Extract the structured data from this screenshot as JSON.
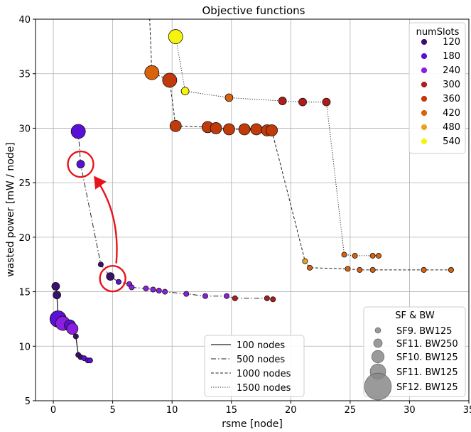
{
  "chart_data": {
    "type": "scatter",
    "title": "Objective functions",
    "xlabel": "rsme [node]",
    "ylabel": "wasted power [mW / node]",
    "xlim": [
      -1.5,
      35
    ],
    "ylim": [
      5,
      40
    ],
    "xticks": [
      0,
      5,
      10,
      15,
      20,
      25,
      30,
      35
    ],
    "yticks": [
      5,
      10,
      15,
      20,
      25,
      30,
      35,
      40
    ],
    "grid": true,
    "color_legend": {
      "title": "numSlots",
      "placement": "top-right",
      "entries": [
        {
          "label": "120",
          "color": "#3b0f70"
        },
        {
          "label": "180",
          "color": "#5a10d8"
        },
        {
          "label": "240",
          "color": "#8c1ee0"
        },
        {
          "label": "300",
          "color": "#b01c1c"
        },
        {
          "label": "360",
          "color": "#c03a0a"
        },
        {
          "label": "420",
          "color": "#d9620d"
        },
        {
          "label": "480",
          "color": "#eca21a"
        },
        {
          "label": "540",
          "color": "#f6f40c"
        }
      ]
    },
    "size_legend": {
      "title": "SF & BW",
      "placement": "bottom-right",
      "entries": [
        {
          "label": "SF9. BW125",
          "size": 1
        },
        {
          "label": "SF11. BW250",
          "size": 2
        },
        {
          "label": "SF10. BW125",
          "size": 3
        },
        {
          "label": "SF11. BW125",
          "size": 4
        },
        {
          "label": "SF12. BW125",
          "size": 5
        }
      ]
    },
    "line_legend": {
      "placement": "bottom-center",
      "entries": [
        {
          "label": "100 nodes",
          "style": "solid"
        },
        {
          "label": "500 nodes",
          "style": "dashdot"
        },
        {
          "label": "1000 nodes",
          "style": "dashed"
        },
        {
          "label": "1500 nodes",
          "style": "dotted"
        }
      ]
    },
    "series": [
      {
        "style": "solid",
        "points": [
          {
            "x": 0.2,
            "y": 15.5,
            "c": "#3b0f70",
            "s": 2
          },
          {
            "x": 0.3,
            "y": 14.7,
            "c": "#3b0f70",
            "s": 2
          },
          {
            "x": 0.4,
            "y": 12.5,
            "c": "#5a10d8",
            "s": 5
          },
          {
            "x": 0.8,
            "y": 12.1,
            "c": "#8c1ee0",
            "s": 4
          },
          {
            "x": 1.4,
            "y": 11.9,
            "c": "#5a10d8",
            "s": 3
          },
          {
            "x": 1.6,
            "y": 11.6,
            "c": "#8c1ee0",
            "s": 3
          },
          {
            "x": 1.9,
            "y": 10.9,
            "c": "#3b0f70",
            "s": 1
          },
          {
            "x": 2.1,
            "y": 9.2,
            "c": "#3b0f70",
            "s": 1
          },
          {
            "x": 2.3,
            "y": 9.0,
            "c": "#3b0f70",
            "s": 1
          },
          {
            "x": 2.6,
            "y": 8.9,
            "c": "#5a10d8",
            "s": 1
          },
          {
            "x": 2.9,
            "y": 8.7,
            "c": "#5a10d8",
            "s": 1
          },
          {
            "x": 3.1,
            "y": 8.7,
            "c": "#5a10d8",
            "s": 1
          }
        ]
      },
      {
        "style": "dashdot",
        "points": [
          {
            "x": 2.1,
            "y": 29.7,
            "c": "#5a10d8",
            "s": 4
          },
          {
            "x": 2.3,
            "y": 26.7,
            "c": "#5a10d8",
            "s": 2
          },
          {
            "x": 4.0,
            "y": 17.5,
            "c": "#3b0f70",
            "s": 1
          },
          {
            "x": 4.8,
            "y": 16.4,
            "c": "#3b0f70",
            "s": 2
          },
          {
            "x": 5.5,
            "y": 15.9,
            "c": "#5a10d8",
            "s": 1
          },
          {
            "x": 6.4,
            "y": 15.7,
            "c": "#8c1ee0",
            "s": 1
          },
          {
            "x": 6.6,
            "y": 15.4,
            "c": "#8c1ee0",
            "s": 1
          },
          {
            "x": 7.8,
            "y": 15.3,
            "c": "#8c1ee0",
            "s": 1
          },
          {
            "x": 8.4,
            "y": 15.2,
            "c": "#8c1ee0",
            "s": 1
          },
          {
            "x": 8.9,
            "y": 15.1,
            "c": "#8c1ee0",
            "s": 1
          },
          {
            "x": 9.4,
            "y": 15.0,
            "c": "#8c1ee0",
            "s": 1
          },
          {
            "x": 11.2,
            "y": 14.8,
            "c": "#8c1ee0",
            "s": 1
          },
          {
            "x": 12.8,
            "y": 14.6,
            "c": "#8c1ee0",
            "s": 1
          },
          {
            "x": 14.6,
            "y": 14.6,
            "c": "#8c1ee0",
            "s": 1
          },
          {
            "x": 15.3,
            "y": 14.4,
            "c": "#b01c1c",
            "s": 1
          },
          {
            "x": 18.0,
            "y": 14.4,
            "c": "#b01c1c",
            "s": 1
          },
          {
            "x": 18.5,
            "y": 14.3,
            "c": "#b01c1c",
            "s": 1
          }
        ]
      },
      {
        "style": "dashed",
        "points": [
          {
            "x": 8.1,
            "y": 40.5,
            "c": "#d9620d",
            "s": 3
          },
          {
            "x": 8.3,
            "y": 35.1,
            "c": "#d9620d",
            "s": 4
          },
          {
            "x": 9.8,
            "y": 34.4,
            "c": "#c03a0a",
            "s": 4
          },
          {
            "x": 10.3,
            "y": 30.2,
            "c": "#c03a0a",
            "s": 3
          },
          {
            "x": 13.0,
            "y": 30.1,
            "c": "#c03a0a",
            "s": 3
          },
          {
            "x": 13.7,
            "y": 30.0,
            "c": "#c03a0a",
            "s": 3
          },
          {
            "x": 14.8,
            "y": 29.9,
            "c": "#c03a0a",
            "s": 3
          },
          {
            "x": 16.1,
            "y": 29.9,
            "c": "#c03a0a",
            "s": 3
          },
          {
            "x": 17.1,
            "y": 29.9,
            "c": "#c03a0a",
            "s": 3
          },
          {
            "x": 18.0,
            "y": 29.8,
            "c": "#c03a0a",
            "s": 3
          },
          {
            "x": 18.4,
            "y": 29.8,
            "c": "#c03a0a",
            "s": 3
          },
          {
            "x": 21.2,
            "y": 17.8,
            "c": "#eca21a",
            "s": 1
          },
          {
            "x": 21.6,
            "y": 17.2,
            "c": "#d9620d",
            "s": 1
          },
          {
            "x": 24.8,
            "y": 17.1,
            "c": "#d9620d",
            "s": 1
          },
          {
            "x": 25.8,
            "y": 17.0,
            "c": "#d9620d",
            "s": 1
          },
          {
            "x": 26.9,
            "y": 17.0,
            "c": "#d9620d",
            "s": 1
          },
          {
            "x": 31.2,
            "y": 17.0,
            "c": "#d9620d",
            "s": 1
          },
          {
            "x": 33.5,
            "y": 17.0,
            "c": "#d9620d",
            "s": 1
          }
        ]
      },
      {
        "style": "dotted",
        "points": [
          {
            "x": 10.3,
            "y": 38.4,
            "c": "#f6f40c",
            "s": 4
          },
          {
            "x": 11.1,
            "y": 33.4,
            "c": "#f6f40c",
            "s": 2
          },
          {
            "x": 14.8,
            "y": 32.8,
            "c": "#d9620d",
            "s": 2
          },
          {
            "x": 19.3,
            "y": 32.5,
            "c": "#b01c1c",
            "s": 2
          },
          {
            "x": 21.0,
            "y": 32.4,
            "c": "#b01c1c",
            "s": 2
          },
          {
            "x": 23.0,
            "y": 32.4,
            "c": "#b01c1c",
            "s": 2
          },
          {
            "x": 24.5,
            "y": 18.4,
            "c": "#d9620d",
            "s": 1
          },
          {
            "x": 25.4,
            "y": 18.3,
            "c": "#d9620d",
            "s": 1
          },
          {
            "x": 26.9,
            "y": 18.3,
            "c": "#d9620d",
            "s": 1
          },
          {
            "x": 27.4,
            "y": 18.3,
            "c": "#d9620d",
            "s": 1
          }
        ]
      }
    ],
    "annotations": [
      {
        "type": "circle",
        "x": 2.3,
        "y": 26.7
      },
      {
        "type": "circle",
        "x": 5.0,
        "y": 16.2
      },
      {
        "type": "arrow",
        "from": [
          5.3,
          17.6
        ],
        "to": [
          3.5,
          25.5
        ]
      }
    ]
  }
}
